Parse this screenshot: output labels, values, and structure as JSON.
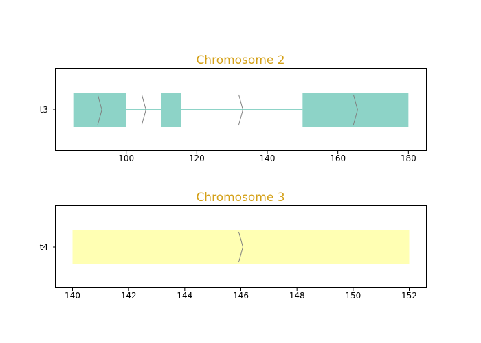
{
  "figure": {
    "title_color": "#d4a017",
    "axis_color": "#000000",
    "arrow_color": "#808080"
  },
  "chart_data": [
    {
      "type": "gene-structure",
      "title": "Chromosome 2",
      "xlim": [
        80,
        185
      ],
      "xticks": [
        100,
        120,
        140,
        160,
        180
      ],
      "tick_labels": [
        "100",
        "120",
        "140",
        "160",
        "180"
      ],
      "track": {
        "label": "t3",
        "color": "#8dd3c7",
        "exons": [
          [
            85,
            100
          ],
          [
            110,
            115.5
          ],
          [
            150,
            180
          ]
        ],
        "introns": [
          [
            100,
            110
          ],
          [
            115.5,
            150
          ]
        ],
        "strand_arrows": [
          92.5,
          105,
          132.5,
          165
        ]
      }
    },
    {
      "type": "gene-structure",
      "title": "Chromosome 3",
      "xlim": [
        139.4,
        152.6
      ],
      "xticks": [
        140,
        142,
        144,
        146,
        148,
        150,
        152
      ],
      "tick_labels": [
        "140",
        "142",
        "144",
        "146",
        "148",
        "150",
        "152"
      ],
      "track": {
        "label": "t4",
        "color": "#ffffb3",
        "exons": [
          [
            140,
            152
          ]
        ],
        "introns": [],
        "strand_arrows": [
          146
        ]
      }
    }
  ]
}
